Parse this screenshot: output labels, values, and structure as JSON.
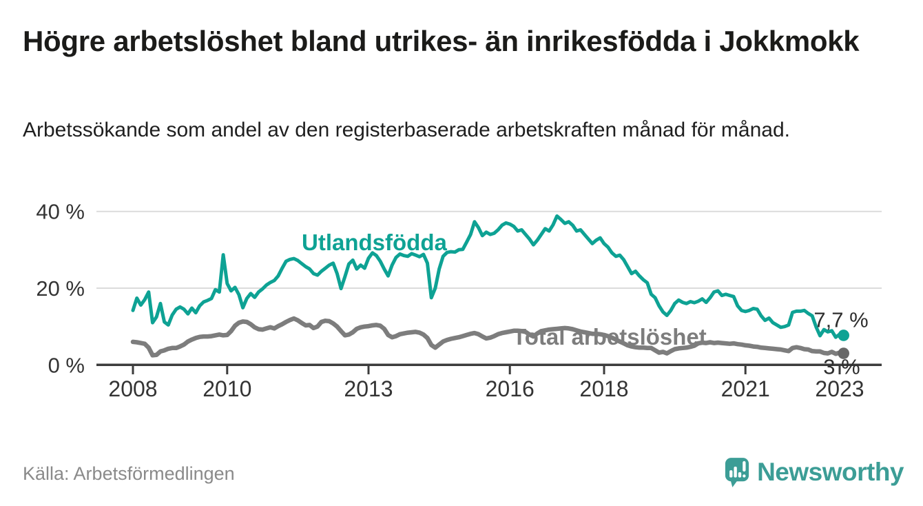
{
  "header": {
    "title": "Högre arbetslöshet bland utrikes- än inrikesfödda i Jokkmokk",
    "subtitle": "Arbetssökande som andel av den registerbaserade arbetskraften månad för månad."
  },
  "footer": {
    "source": "Källa: Arbetsförmedlingen",
    "brand": "Newsworthy",
    "brand_color": "#3c9d96"
  },
  "chart_data": {
    "type": "line",
    "unit": "%",
    "frequency": "monthly",
    "x_start": "2008-01",
    "x_end": "2023-02",
    "ylim": [
      0,
      43
    ],
    "grid": "horizontal",
    "legend": "inline-labels",
    "y_ticks": [
      {
        "value": 0,
        "label": "0 %"
      },
      {
        "value": 20,
        "label": "20 %"
      },
      {
        "value": 40,
        "label": "40 %"
      }
    ],
    "x_ticks": [
      {
        "year": 2008,
        "label": "2008"
      },
      {
        "year": 2010,
        "label": "2010"
      },
      {
        "year": 2013,
        "label": "2013"
      },
      {
        "year": 2016,
        "label": "2016"
      },
      {
        "year": 2018,
        "label": "2018"
      },
      {
        "year": 2021,
        "label": "2021"
      },
      {
        "year": 2023,
        "label": "2023"
      }
    ],
    "series": [
      {
        "name": "Utlandsfödda",
        "color": "#0ea294",
        "dot_color": "#0ea294",
        "end_label": "7,7 %",
        "end_value": 7.7,
        "values": [
          14.2,
          17.4,
          15.6,
          17.0,
          19.0,
          11.0,
          12.5,
          16.0,
          11.2,
          10.4,
          13.0,
          14.5,
          15.1,
          14.5,
          13.3,
          14.8,
          13.6,
          15.4,
          16.4,
          16.8,
          17.3,
          19.6,
          19.0,
          28.7,
          21.2,
          19.3,
          20.2,
          18.3,
          14.9,
          17.3,
          18.6,
          17.6,
          19.0,
          19.8,
          20.8,
          21.5,
          22.0,
          23.2,
          25.2,
          27.0,
          27.5,
          27.7,
          27.2,
          26.4,
          25.6,
          25.0,
          23.8,
          23.4,
          24.4,
          25.2,
          26.0,
          26.5,
          23.8,
          19.9,
          23.0,
          26.3,
          27.3,
          25.0,
          26.0,
          25.2,
          27.8,
          29.2,
          28.5,
          27.0,
          25.0,
          23.2,
          26.0,
          28.0,
          28.9,
          28.5,
          28.3,
          29.0,
          28.6,
          28.2,
          28.8,
          26.5,
          17.5,
          20.0,
          25.0,
          28.3,
          29.3,
          29.5,
          29.4,
          30.0,
          30.1,
          32.0,
          34.0,
          37.3,
          35.8,
          33.7,
          34.6,
          34.0,
          34.3,
          35.2,
          36.4,
          37.0,
          36.7,
          36.1,
          34.9,
          35.2,
          34.0,
          32.8,
          31.3,
          32.5,
          34.0,
          35.5,
          34.9,
          36.5,
          38.8,
          37.9,
          36.9,
          37.3,
          36.4,
          34.9,
          35.2,
          34.0,
          32.8,
          31.6,
          32.5,
          33.1,
          31.6,
          30.7,
          29.2,
          28.3,
          28.6,
          27.4,
          25.6,
          23.8,
          24.4,
          23.2,
          22.2,
          21.4,
          18.4,
          17.5,
          15.4,
          13.8,
          12.9,
          14.2,
          16.0,
          16.9,
          16.3,
          16.0,
          16.5,
          16.2,
          16.6,
          17.2,
          16.3,
          17.5,
          19.0,
          19.3,
          18.1,
          18.4,
          18.1,
          17.8,
          15.4,
          14.2,
          13.9,
          14.2,
          14.7,
          14.5,
          12.8,
          11.6,
          12.2,
          11.0,
          10.4,
          9.8,
          10.0,
          10.4,
          13.7,
          14.0,
          14.0,
          14.2,
          13.4,
          12.8,
          9.9,
          7.6,
          9.2,
          8.6,
          8.9,
          7.2,
          8.0,
          7.7
        ]
      },
      {
        "name": "Total arbetslöshet",
        "color": "#7d7d7d",
        "dot_color": "#686868",
        "end_label": "3 %",
        "end_value": 3.0,
        "values": [
          6.0,
          5.9,
          5.7,
          5.5,
          4.5,
          2.5,
          2.6,
          3.5,
          3.8,
          4.2,
          4.4,
          4.4,
          4.8,
          5.3,
          6.1,
          6.6,
          7.0,
          7.3,
          7.4,
          7.4,
          7.5,
          7.7,
          7.9,
          7.7,
          7.8,
          8.8,
          10.2,
          11.0,
          11.3,
          11.2,
          10.6,
          9.8,
          9.3,
          9.2,
          9.5,
          9.8,
          9.5,
          10.1,
          10.6,
          11.2,
          11.7,
          12.1,
          11.6,
          10.9,
          10.3,
          10.4,
          9.6,
          10.0,
          11.2,
          11.5,
          11.4,
          10.8,
          10.0,
          8.8,
          7.7,
          7.9,
          8.5,
          9.4,
          9.8,
          10.0,
          10.1,
          10.3,
          10.4,
          10.2,
          9.4,
          7.8,
          7.2,
          7.5,
          8.0,
          8.2,
          8.4,
          8.5,
          8.6,
          8.4,
          7.9,
          7.0,
          5.2,
          4.5,
          5.3,
          6.1,
          6.5,
          6.8,
          7.0,
          7.2,
          7.5,
          7.8,
          8.1,
          8.3,
          8.0,
          7.4,
          6.9,
          7.1,
          7.5,
          8.0,
          8.3,
          8.5,
          8.7,
          8.9,
          8.9,
          8.8,
          8.6,
          7.9,
          7.4,
          8.2,
          8.8,
          9.0,
          9.2,
          9.3,
          9.4,
          9.5,
          9.6,
          9.5,
          9.3,
          9.0,
          8.7,
          8.5,
          8.3,
          8.1,
          8.1,
          8.0,
          7.8,
          7.5,
          7.1,
          6.6,
          6.1,
          5.6,
          5.1,
          4.8,
          4.6,
          4.5,
          4.5,
          4.4,
          4.4,
          3.8,
          3.2,
          3.4,
          3.0,
          3.6,
          4.1,
          4.3,
          4.4,
          4.5,
          4.7,
          5.0,
          5.6,
          5.8,
          5.7,
          5.9,
          5.7,
          5.8,
          5.7,
          5.6,
          5.5,
          5.6,
          5.4,
          5.3,
          5.1,
          5.0,
          4.8,
          4.7,
          4.5,
          4.4,
          4.3,
          4.2,
          4.1,
          4.0,
          3.8,
          3.6,
          4.4,
          4.6,
          4.4,
          4.1,
          4.0,
          3.6,
          3.5,
          3.5,
          3.1,
          3.0,
          3.4,
          2.9,
          3.2,
          3.0
        ]
      }
    ],
    "colors": {
      "axis": "#3c3c3c",
      "gridline": "#dbdbdb",
      "tick_label": "#343434",
      "value_label": "#2e2e2e"
    }
  }
}
